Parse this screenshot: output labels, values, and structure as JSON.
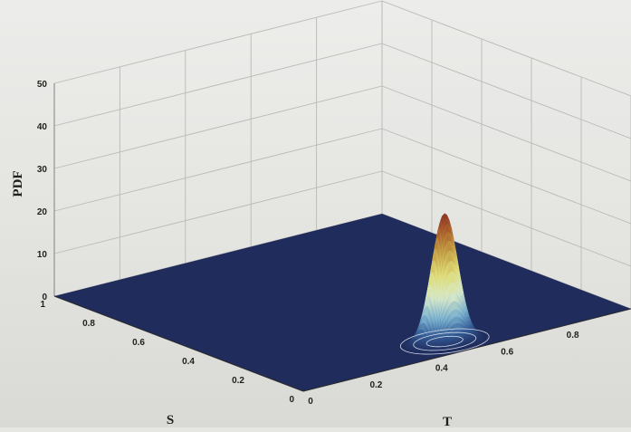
{
  "chart_data": {
    "type": "surface3d",
    "title": "",
    "zlabel": "PDF",
    "ylabel": "S",
    "xlabel": "T",
    "zlim": [
      0,
      50
    ],
    "ylim": [
      0,
      1
    ],
    "xlim": [
      0,
      1
    ],
    "z_ticks": [
      "0",
      "10",
      "20",
      "30",
      "40",
      "50"
    ],
    "y_ticks": [
      "0",
      "0.2",
      "0.4",
      "0.6",
      "0.8",
      "1"
    ],
    "x_ticks": [
      "0",
      "0.2",
      "0.4",
      "0.6",
      "0.8"
    ],
    "grid": true,
    "colormap": "jet",
    "surface": {
      "peak_t": 0.5,
      "peak_s": 0.09,
      "peak_pdf": 30,
      "spread_t": 0.035,
      "spread_s": 0.025
    }
  }
}
